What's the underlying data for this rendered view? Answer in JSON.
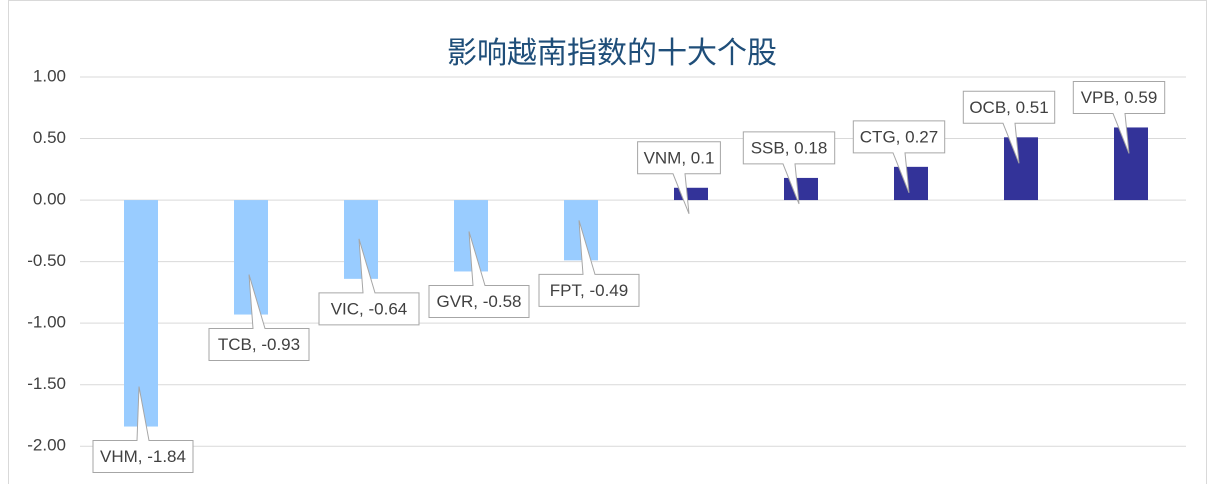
{
  "chart_data": {
    "type": "bar",
    "title": "影响越南指数的十大个股",
    "categories": [
      "VHM",
      "TCB",
      "VIC",
      "GVR",
      "FPT",
      "VNM",
      "SSB",
      "CTG",
      "OCB",
      "VPB"
    ],
    "values": [
      -1.84,
      -0.93,
      -0.64,
      -0.58,
      -0.49,
      0.1,
      0.18,
      0.27,
      0.51,
      0.59
    ],
    "value_labels": [
      "VHM, -1.84",
      "TCB, -0.93",
      "VIC, -0.64",
      "GVR, -0.58",
      "FPT, -0.49",
      "VNM, 0.1",
      "SSB, 0.18",
      "CTG, 0.27",
      "OCB, 0.51",
      "VPB, 0.59"
    ],
    "colors": {
      "negative": "#99CCFF",
      "positive": "#333399"
    },
    "ylim": [
      -2.25,
      1
    ],
    "yticks": [
      {
        "value": 1,
        "label": "1.00"
      },
      {
        "value": 0.5,
        "label": "0.50"
      },
      {
        "value": 0,
        "label": "0.00"
      },
      {
        "value": -0.5,
        "label": "-0.50"
      },
      {
        "value": -1,
        "label": "-1.00"
      },
      {
        "value": -1.5,
        "label": "-1.50"
      },
      {
        "value": -2,
        "label": "-2.00"
      }
    ],
    "grid": true
  }
}
